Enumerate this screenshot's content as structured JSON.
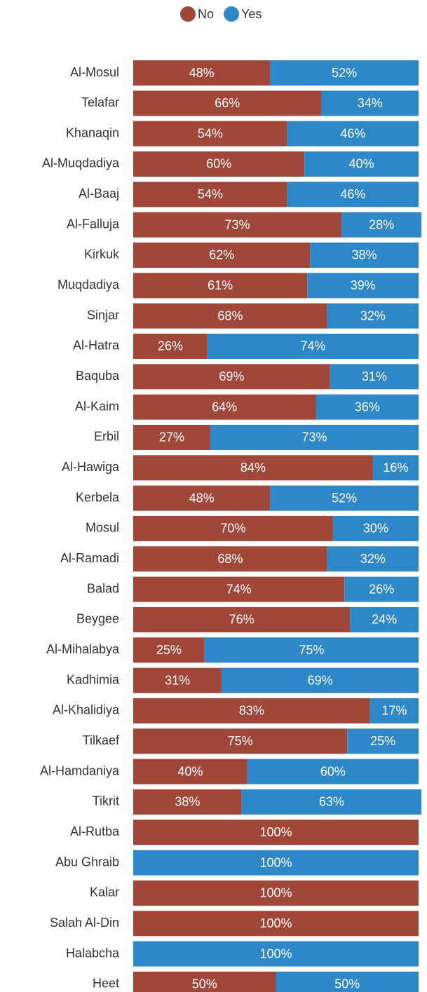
{
  "chart_data": {
    "type": "stacked_bar_horizontal",
    "categories": [
      "Al-Mosul",
      "Telafar",
      "Khanaqin",
      "Al-Muqdadiya",
      "Al-Baaj",
      "Al-Falluja",
      "Kirkuk",
      "Muqdadiya",
      "Sinjar",
      "Al-Hatra",
      "Baquba",
      "Al-Kaim",
      "Erbil",
      "Al-Hawiga",
      "Kerbela",
      "Mosul",
      "Al-Ramadi",
      "Balad",
      "Beygee",
      "Al-Mihalabya",
      "Kadhimia",
      "Al-Khalidiya",
      "Tilkaef",
      "Al-Hamdaniya",
      "Tikrit",
      "Al-Rutba",
      "Abu Ghraib",
      "Kalar",
      "Salah Al-Din",
      "Halabcha",
      "Heet"
    ],
    "series": [
      {
        "name": "No",
        "color": "#a0473a",
        "values": [
          48,
          66,
          54,
          60,
          54,
          73,
          62,
          61,
          68,
          26,
          69,
          64,
          27,
          84,
          48,
          70,
          68,
          74,
          76,
          25,
          31,
          83,
          75,
          40,
          38,
          100,
          0,
          100,
          100,
          0,
          50
        ],
        "value_labels": [
          "48%",
          "66%",
          "54%",
          "60%",
          "54%",
          "73%",
          "62%",
          "61%",
          "68%",
          "26%",
          "69%",
          "64%",
          "27%",
          "84%",
          "48%",
          "70%",
          "68%",
          "74%",
          "76%",
          "25%",
          "31%",
          "83%",
          "75%",
          "40%",
          "38%",
          "100%",
          null,
          "100%",
          "100%",
          null,
          "50%"
        ]
      },
      {
        "name": "Yes",
        "color": "#2e88c8",
        "values": [
          52,
          34,
          46,
          40,
          46,
          28,
          38,
          39,
          32,
          74,
          31,
          36,
          73,
          16,
          52,
          30,
          32,
          26,
          24,
          75,
          69,
          17,
          25,
          60,
          63,
          0,
          100,
          0,
          0,
          100,
          50
        ],
        "value_labels": [
          "52%",
          "34%",
          "46%",
          "40%",
          "46%",
          "28%",
          "38%",
          "39%",
          "32%",
          "74%",
          "31%",
          "36%",
          "73%",
          "16%",
          "52%",
          "30%",
          "32%",
          "26%",
          "24%",
          "75%",
          "69%",
          "17%",
          "25%",
          "60%",
          "63%",
          null,
          "100%",
          null,
          null,
          "100%",
          "50%"
        ]
      }
    ],
    "xlim": [
      0,
      100
    ],
    "legend": "top"
  }
}
